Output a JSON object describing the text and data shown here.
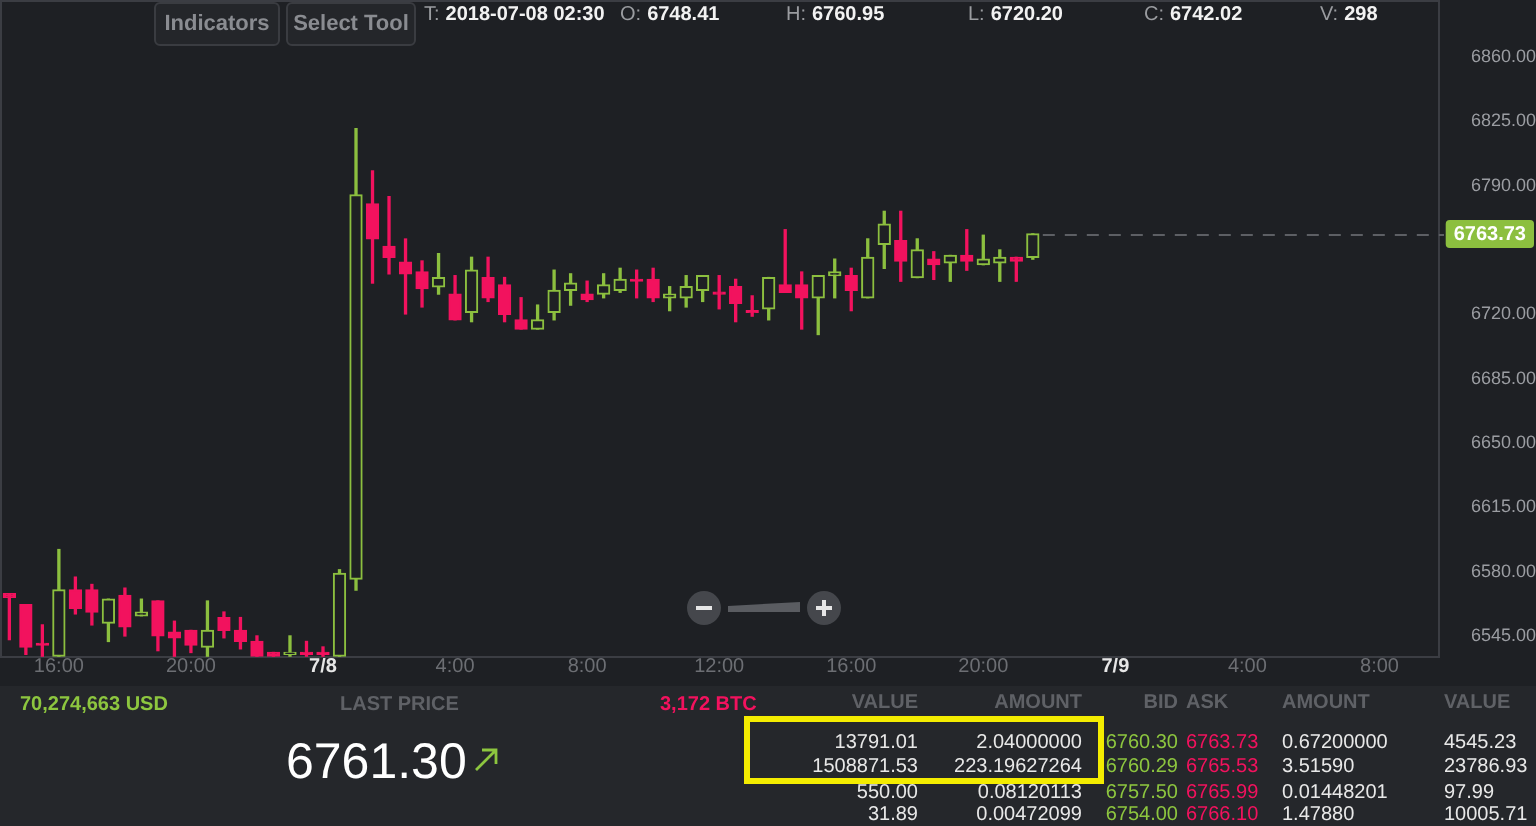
{
  "chart_data": {
    "type": "candlestick",
    "x": [
      "2018-07-07T14:30",
      "2018-07-07T15:00",
      "2018-07-07T15:30",
      "2018-07-07T16:00",
      "2018-07-07T16:30",
      "2018-07-07T17:00",
      "2018-07-07T17:30",
      "2018-07-07T18:00",
      "2018-07-07T18:30",
      "2018-07-07T19:00",
      "2018-07-07T19:30",
      "2018-07-07T20:00",
      "2018-07-07T20:30",
      "2018-07-07T21:00",
      "2018-07-07T21:30",
      "2018-07-07T22:00",
      "2018-07-07T22:30",
      "2018-07-07T23:00",
      "2018-07-07T23:30",
      "2018-07-08T00:00",
      "2018-07-08T00:30",
      "2018-07-08T01:00",
      "2018-07-08T01:30",
      "2018-07-08T02:00",
      "2018-07-08T02:30",
      "2018-07-08T03:00",
      "2018-07-08T03:30",
      "2018-07-08T04:00",
      "2018-07-08T04:30",
      "2018-07-08T05:00",
      "2018-07-08T05:30",
      "2018-07-08T06:00",
      "2018-07-08T06:30",
      "2018-07-08T07:00",
      "2018-07-08T07:30",
      "2018-07-08T08:00",
      "2018-07-08T08:30",
      "2018-07-08T09:00",
      "2018-07-08T09:30",
      "2018-07-08T10:00",
      "2018-07-08T10:30",
      "2018-07-08T11:00",
      "2018-07-08T11:30",
      "2018-07-08T12:00",
      "2018-07-08T12:30",
      "2018-07-08T13:00",
      "2018-07-08T13:30",
      "2018-07-08T14:00",
      "2018-07-08T14:30",
      "2018-07-08T15:00",
      "2018-07-08T15:30",
      "2018-07-08T16:00",
      "2018-07-08T16:30",
      "2018-07-08T17:00",
      "2018-07-08T17:30",
      "2018-07-08T18:00",
      "2018-07-08T18:30",
      "2018-07-08T19:00",
      "2018-07-08T19:30",
      "2018-07-08T20:00",
      "2018-07-08T20:30",
      "2018-07-08T21:00",
      "2018-07-08T21:30"
    ],
    "ohlc": [
      [
        6568,
        6568,
        6543,
        6566
      ],
      [
        6562,
        6562,
        6535,
        6539
      ],
      [
        6541,
        6551,
        6534,
        6540
      ],
      [
        6534,
        6592,
        6534,
        6570
      ],
      [
        6570,
        6577,
        6557,
        6560
      ],
      [
        6570,
        6573,
        6551,
        6558
      ],
      [
        6552,
        6565,
        6542,
        6565
      ],
      [
        6567,
        6571,
        6545,
        6550
      ],
      [
        6556,
        6565,
        6556,
        6558
      ],
      [
        6564,
        6564,
        6537,
        6545
      ],
      [
        6547,
        6553,
        6534,
        6544
      ],
      [
        6548,
        6548,
        6536,
        6540
      ],
      [
        6539,
        6564,
        6534,
        6548
      ],
      [
        6555,
        6558,
        6544,
        6548
      ],
      [
        6548,
        6555,
        6538,
        6542
      ],
      [
        6542,
        6545,
        6534,
        6534
      ],
      [
        6536,
        6536,
        6534,
        6534
      ],
      [
        6535,
        6545,
        6534,
        6536
      ],
      [
        6536,
        6542,
        6534,
        6535
      ],
      [
        6536,
        6539,
        6534,
        6535
      ],
      [
        6534,
        6581,
        6534,
        6579
      ],
      [
        6576,
        6821,
        6570,
        6785
      ],
      [
        6780,
        6798,
        6737,
        6761
      ],
      [
        6757,
        6784,
        6742,
        6751
      ],
      [
        6748.41,
        6760.95,
        6720.2,
        6742.02
      ],
      [
        6743,
        6749,
        6724,
        6734
      ],
      [
        6735,
        6753,
        6731,
        6740
      ],
      [
        6731,
        6741,
        6717,
        6717
      ],
      [
        6721,
        6751,
        6716,
        6744
      ],
      [
        6740,
        6751,
        6727,
        6729
      ],
      [
        6736,
        6740,
        6716,
        6720
      ],
      [
        6717,
        6729,
        6712,
        6712
      ],
      [
        6712,
        6725,
        6712,
        6717
      ],
      [
        6721,
        6744,
        6717,
        6733
      ],
      [
        6733,
        6742,
        6725,
        6737
      ],
      [
        6731,
        6738,
        6727,
        6728
      ],
      [
        6731,
        6742,
        6729,
        6736
      ],
      [
        6733,
        6745,
        6732,
        6739
      ],
      [
        6739,
        6744,
        6729,
        6738
      ],
      [
        6739,
        6745,
        6727,
        6729
      ],
      [
        6729,
        6735,
        6722,
        6731
      ],
      [
        6729,
        6741,
        6724,
        6735
      ],
      [
        6733,
        6741,
        6727,
        6741
      ],
      [
        6732,
        6741,
        6723,
        6731
      ],
      [
        6735,
        6739,
        6716,
        6726
      ],
      [
        6722,
        6730,
        6719,
        6721
      ],
      [
        6723,
        6740,
        6717,
        6740
      ],
      [
        6736,
        6766,
        6732,
        6732
      ],
      [
        6736,
        6743,
        6712,
        6729
      ],
      [
        6729,
        6741,
        6709,
        6741
      ],
      [
        6741,
        6750,
        6729,
        6743
      ],
      [
        6741,
        6745,
        6722,
        6733
      ],
      [
        6729,
        6761,
        6729,
        6751
      ],
      [
        6758,
        6776,
        6745,
        6769
      ],
      [
        6760,
        6776,
        6738,
        6749
      ],
      [
        6740,
        6761,
        6740,
        6755
      ],
      [
        6750,
        6754,
        6739,
        6747
      ],
      [
        6748,
        6752,
        6738,
        6752
      ],
      [
        6752,
        6766,
        6744,
        6749
      ],
      [
        6747,
        6763,
        6747,
        6750
      ],
      [
        6748,
        6755,
        6738,
        6751
      ],
      [
        6751,
        6751,
        6738,
        6749
      ],
      [
        6751,
        6763.73,
        6750,
        6763.73
      ]
    ],
    "colors": [
      "#f2125e",
      "#f2125e",
      "#f2125e",
      "#8cbf3f",
      "#f2125e",
      "#f2125e",
      "#8cbf3f",
      "#f2125e",
      "#8cbf3f",
      "#f2125e",
      "#f2125e",
      "#f2125e",
      "#8cbf3f",
      "#f2125e",
      "#f2125e",
      "#f2125e",
      "#f2125e",
      "#8cbf3f",
      "#f2125e",
      "#f2125e",
      "#8cbf3f",
      "#8cbf3f",
      "#f2125e",
      "#f2125e",
      "#f2125e",
      "#f2125e",
      "#8cbf3f",
      "#f2125e",
      "#8cbf3f",
      "#f2125e",
      "#f2125e",
      "#f2125e",
      "#8cbf3f",
      "#8cbf3f",
      "#8cbf3f",
      "#f2125e",
      "#8cbf3f",
      "#8cbf3f",
      "#f2125e",
      "#f2125e",
      "#8cbf3f",
      "#8cbf3f",
      "#8cbf3f",
      "#f2125e",
      "#f2125e",
      "#f2125e",
      "#8cbf3f",
      "#f2125e",
      "#f2125e",
      "#8cbf3f",
      "#8cbf3f",
      "#f2125e",
      "#8cbf3f",
      "#8cbf3f",
      "#f2125e",
      "#8cbf3f",
      "#f2125e",
      "#8cbf3f",
      "#f2125e",
      "#8cbf3f",
      "#8cbf3f",
      "#f2125e",
      "#8cbf3f"
    ],
    "xlim": [
      "2018-07-07T14:13",
      "2018-07-09T09:50"
    ],
    "xticks": [
      {
        "value": "2018-07-07T16:00",
        "label": "16:00"
      },
      {
        "value": "2018-07-07T20:00",
        "label": "20:00"
      },
      {
        "value": "2018-07-08",
        "label": "7/8"
      },
      {
        "value": "2018-07-08T04:00",
        "label": "4:00"
      },
      {
        "value": "2018-07-08T08:00",
        "label": "8:00"
      },
      {
        "value": "2018-07-08T12:00",
        "label": "12:00"
      },
      {
        "value": "2018-07-08T16:00",
        "label": "16:00"
      },
      {
        "value": "2018-07-08T20:00",
        "label": "20:00"
      },
      {
        "value": "2018-07-09",
        "label": "7/9"
      },
      {
        "value": "2018-07-09T04:00",
        "label": "4:00"
      },
      {
        "value": "2018-07-09T08:00",
        "label": "8:00"
      }
    ],
    "ylim": [
      6533,
      6891
    ],
    "yticks": [
      {
        "value": 6545,
        "label": "6545.00"
      },
      {
        "value": 6580,
        "label": "6580.00"
      },
      {
        "value": 6615,
        "label": "6615.00"
      },
      {
        "value": 6650,
        "label": "6650.00"
      },
      {
        "value": 6685,
        "label": "6685.00"
      },
      {
        "value": 6720,
        "label": "6720.00"
      },
      {
        "value": 6790,
        "label": "6790.00"
      },
      {
        "value": 6825,
        "label": "6825.00"
      },
      {
        "value": 6860,
        "label": "6860.00"
      }
    ],
    "ref_lines": [
      {
        "axis": "y",
        "value": 6763.73,
        "label": "6763.73",
        "color": "#5d5f64",
        "line_style": "dashed"
      }
    ],
    "annotations": [
      "Indicators",
      "Select Tool",
      "T: 2018-07-08 02:30",
      "O: 6748.41",
      "H: 6760.95",
      "L: 6720.20",
      "C: 6742.02",
      "V: 298",
      "70,274,663 USD",
      "LAST PRICE",
      "6761.30",
      "3,172 BTC",
      "VALUE",
      "AMOUNT",
      "BID",
      "ASK",
      "AMOUNT",
      "VALUE",
      "13791.01",
      "2.04000000",
      "6760.30",
      "6763.73",
      "0.67200000",
      "4545.23",
      "1508871.53",
      "223.19627264",
      "6760.29",
      "6765.53",
      "3.51590",
      "23786.93",
      "550.00",
      "0.08120113",
      "6757.50",
      "6765.99",
      "0.01448201",
      "97.99",
      "31.89",
      "0.00472099",
      "6754.00",
      "6766.10",
      "1.47880",
      "10005.71"
    ]
  }
}
